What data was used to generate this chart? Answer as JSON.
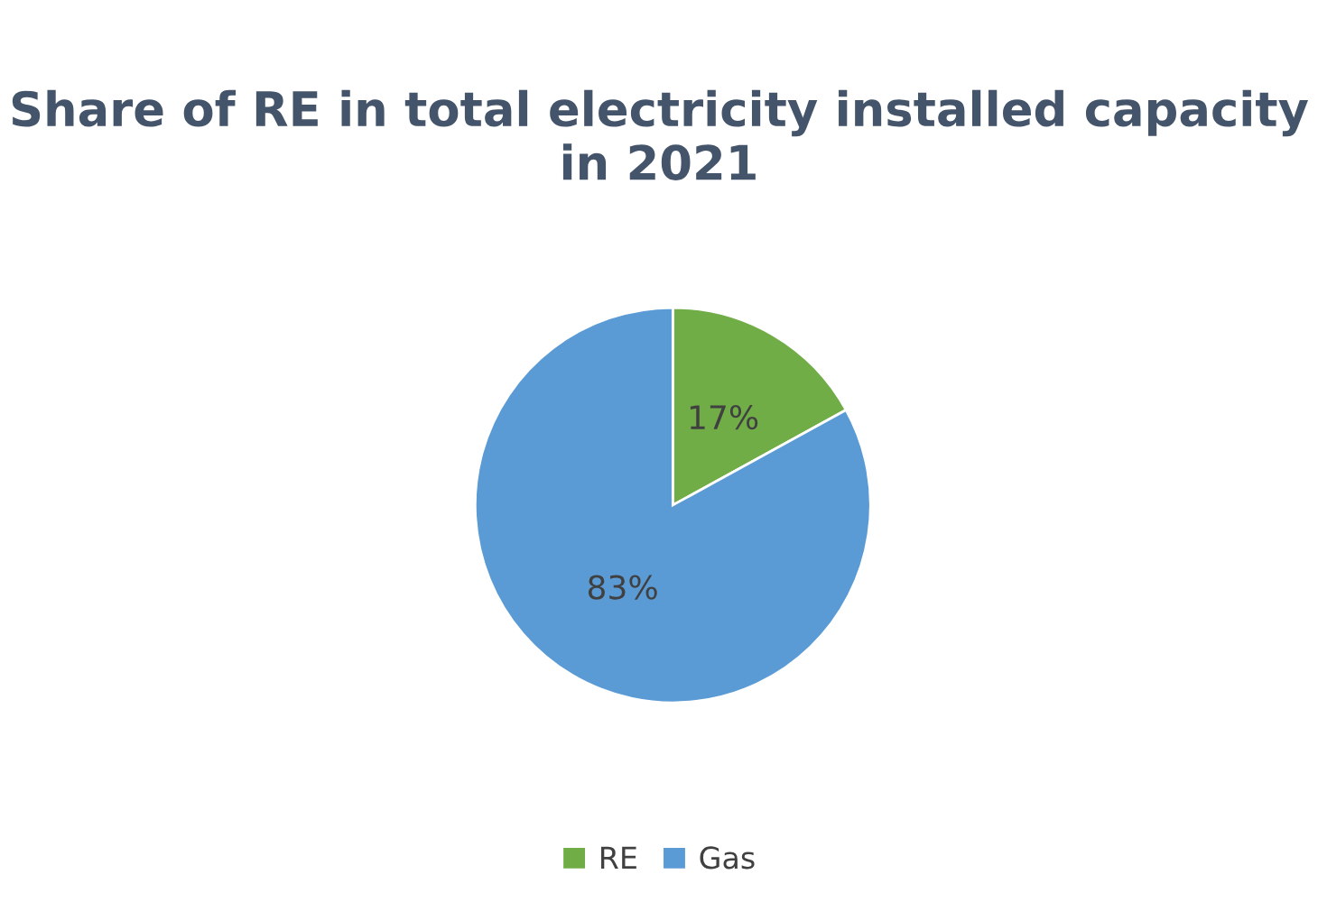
{
  "chart_data": {
    "type": "pie",
    "title": "Share of RE in total electricity installed capacity in 2021",
    "categories": [
      "RE",
      "Gas"
    ],
    "values": [
      17,
      83
    ],
    "value_labels": [
      "17%",
      "83%"
    ],
    "colors": [
      "#70ad47",
      "#5b9bd5"
    ],
    "legend": "bottom"
  }
}
